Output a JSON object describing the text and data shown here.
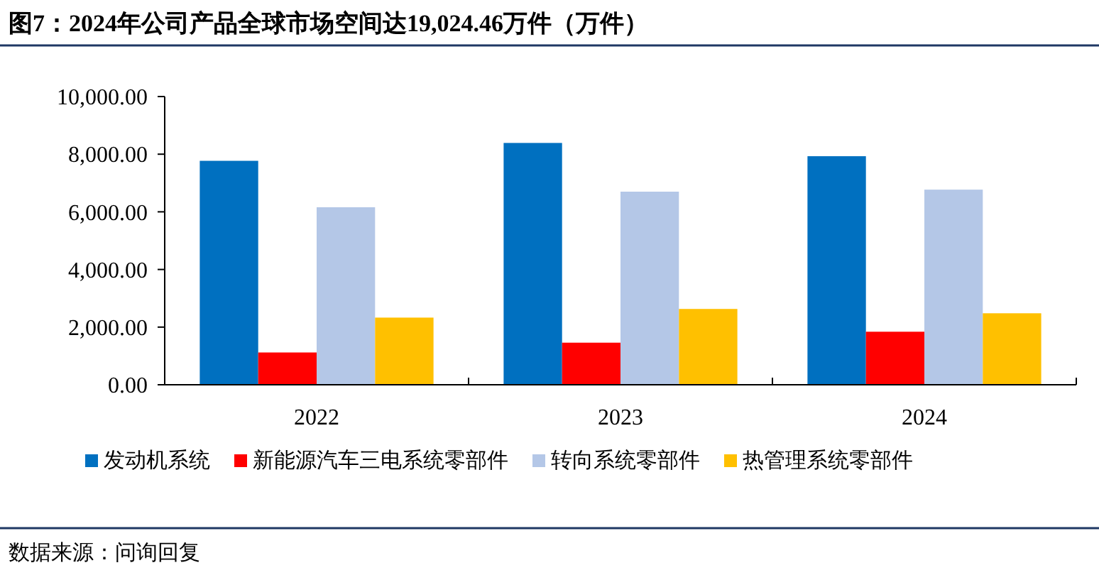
{
  "chart_data": {
    "type": "bar",
    "title": "图7：2024年公司产品全球市场空间达19,024.46万件（万件）",
    "categories": [
      "2022",
      "2023",
      "2024"
    ],
    "series": [
      {
        "name": "发动机系统",
        "color": "#0070c0",
        "values": [
          7770,
          8390,
          7930
        ]
      },
      {
        "name": "新能源汽车三电系统零部件",
        "color": "#ff0000",
        "values": [
          1120,
          1460,
          1840
        ]
      },
      {
        "name": "转向系统零部件",
        "color": "#b4c7e7",
        "values": [
          6160,
          6700,
          6770
        ]
      },
      {
        "name": "热管理系统零部件",
        "color": "#ffc000",
        "values": [
          2330,
          2630,
          2480
        ]
      }
    ],
    "ylim": [
      0,
      10000
    ],
    "yticks": [
      {
        "value": 0,
        "label": "0.00"
      },
      {
        "value": 2000,
        "label": "2,000.00"
      },
      {
        "value": 4000,
        "label": "4,000.00"
      },
      {
        "value": 6000,
        "label": "6,000.00"
      },
      {
        "value": 8000,
        "label": "8,000.00"
      },
      {
        "value": 10000,
        "label": "10,000.00"
      }
    ],
    "legend": "bottom",
    "annotations": [
      "数据来源：问询回复"
    ]
  }
}
